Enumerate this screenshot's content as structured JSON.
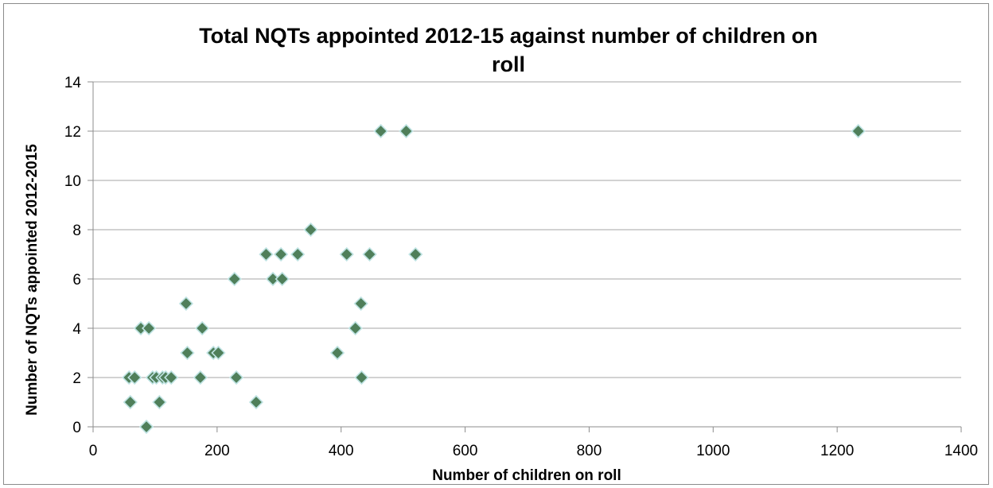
{
  "chart_data": {
    "type": "scatter",
    "title_lines": [
      "Total NQTs appointed 2012-15 against number of children on",
      "roll"
    ],
    "xlabel": "Number of children on roll",
    "ylabel": "Number of NQTs appointed 2012-2015",
    "xlim": [
      0,
      1400
    ],
    "ylim": [
      0,
      14
    ],
    "x_ticks": [
      "0",
      "200",
      "400",
      "600",
      "800",
      "1000",
      "1200",
      "1400"
    ],
    "y_ticks": [
      "0",
      "2",
      "4",
      "6",
      "8",
      "10",
      "12",
      "14"
    ],
    "grid": "horizontal",
    "legend": "none",
    "marker": "diamond",
    "marker_color": "#4f7f5a",
    "marker_edge": "#bfe3e3",
    "points": [
      {
        "x": 58,
        "y": 2
      },
      {
        "x": 60,
        "y": 1
      },
      {
        "x": 67,
        "y": 2
      },
      {
        "x": 77,
        "y": 4
      },
      {
        "x": 86,
        "y": 0
      },
      {
        "x": 90,
        "y": 4
      },
      {
        "x": 96,
        "y": 2
      },
      {
        "x": 102,
        "y": 2
      },
      {
        "x": 107,
        "y": 1
      },
      {
        "x": 112,
        "y": 2
      },
      {
        "x": 117,
        "y": 2
      },
      {
        "x": 126,
        "y": 2
      },
      {
        "x": 150,
        "y": 5
      },
      {
        "x": 152,
        "y": 3
      },
      {
        "x": 173,
        "y": 2
      },
      {
        "x": 176,
        "y": 4
      },
      {
        "x": 194,
        "y": 3
      },
      {
        "x": 202,
        "y": 3
      },
      {
        "x": 228,
        "y": 6
      },
      {
        "x": 231,
        "y": 2
      },
      {
        "x": 263,
        "y": 1
      },
      {
        "x": 279,
        "y": 7
      },
      {
        "x": 290,
        "y": 6
      },
      {
        "x": 303,
        "y": 7
      },
      {
        "x": 305,
        "y": 6
      },
      {
        "x": 330,
        "y": 7
      },
      {
        "x": 351,
        "y": 8
      },
      {
        "x": 394,
        "y": 3
      },
      {
        "x": 409,
        "y": 7
      },
      {
        "x": 423,
        "y": 4
      },
      {
        "x": 432,
        "y": 5
      },
      {
        "x": 433,
        "y": 2
      },
      {
        "x": 446,
        "y": 7
      },
      {
        "x": 464,
        "y": 12
      },
      {
        "x": 505,
        "y": 12
      },
      {
        "x": 520,
        "y": 7
      },
      {
        "x": 1234,
        "y": 12
      }
    ]
  }
}
